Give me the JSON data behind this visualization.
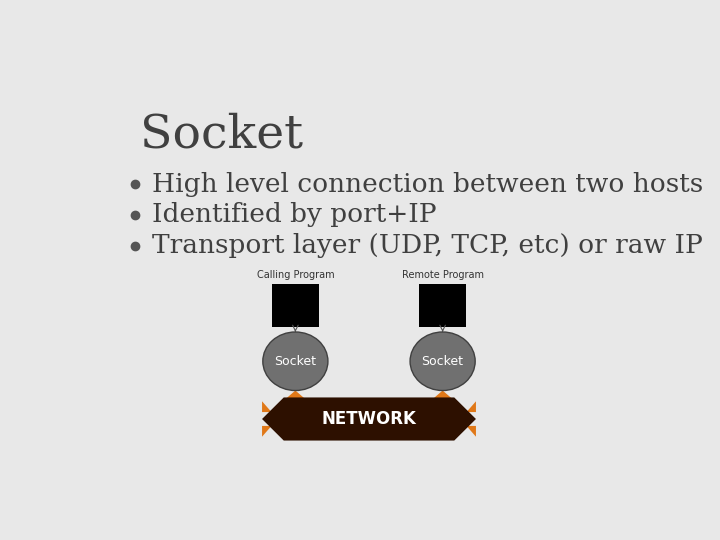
{
  "title": "Socket",
  "bullet_points": [
    "High level connection between two hosts",
    "Identified by port+IP",
    "Transport layer (UDP, TCP, etc) or raw IP"
  ],
  "bg_color": "#e8e8e8",
  "title_color": "#404040",
  "bullet_color": "#404040",
  "bullet_dot_color": "#555555",
  "title_fontsize": 34,
  "bullet_fontsize": 19,
  "socket_color": "#707070",
  "socket_text_color": "#ffffff",
  "network_color": "#2d1000",
  "arrow_color": "#e07818",
  "calling_label": "Calling Program",
  "remote_label": "Remote Program",
  "network_label": "NETWORK",
  "label_fontsize": 7,
  "socket_fontsize": 9,
  "network_fontsize": 12
}
